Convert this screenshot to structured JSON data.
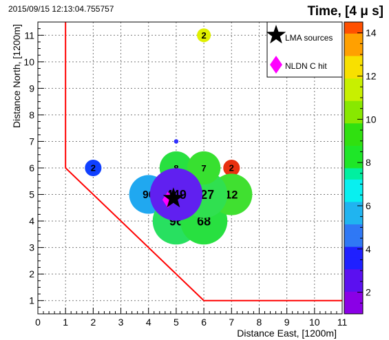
{
  "timestamp": "2015/09/15 12:13:04.755757",
  "chart_data": {
    "type": "scatter",
    "title": "Time, [4 μ s]",
    "xlabel": "Distance East,  [1200m]",
    "ylabel": "Distance North,  [1200m]",
    "xlim": [
      0,
      11
    ],
    "ylim": [
      0.5,
      11.5
    ],
    "x_ticks": [
      "0",
      "1",
      "2",
      "3",
      "4",
      "5",
      "6",
      "7",
      "8",
      "9",
      "10",
      "11"
    ],
    "y_ticks": [
      "1",
      "2",
      "3",
      "4",
      "5",
      "6",
      "7",
      "8",
      "9",
      "10",
      "11"
    ],
    "grid": true,
    "colorbar": {
      "range": [
        1,
        14.5
      ],
      "ticks": [
        "2",
        "4",
        "6",
        "8",
        "10",
        "12",
        "14"
      ],
      "tick_values": [
        2,
        4,
        6,
        8,
        10,
        12,
        14
      ]
    },
    "legend": {
      "placement": "top-right",
      "entries": [
        {
          "label": "LMA sources",
          "marker": "star",
          "color": "#000000"
        },
        {
          "label": "NLDN   C hit",
          "marker": "diamond",
          "color": "#ff00ff"
        }
      ]
    },
    "boundary": {
      "color": "#ff0000",
      "points": [
        [
          1,
          11.5
        ],
        [
          1,
          6
        ],
        [
          6,
          1
        ],
        [
          11,
          1
        ]
      ]
    },
    "bubbles": [
      {
        "x": 6,
        "y": 11,
        "label": "2",
        "color": "#e0f000",
        "size": 0.25
      },
      {
        "x": 5,
        "y": 7,
        "label": "",
        "color": "#3030ff",
        "size": 0.08
      },
      {
        "x": 2,
        "y": 6,
        "label": "2",
        "color": "#1040ff",
        "size": 0.3
      },
      {
        "x": 7,
        "y": 6,
        "label": "2",
        "color": "#e83010",
        "size": 0.3
      },
      {
        "x": 4,
        "y": 5,
        "label": "96",
        "color": "#20a8f0",
        "size": 0.7
      },
      {
        "x": 5,
        "y": 4,
        "label": "96",
        "color": "#28e060",
        "size": 0.85
      },
      {
        "x": 6,
        "y": 4,
        "label": "68",
        "color": "#28e040",
        "size": 0.85
      },
      {
        "x": 7,
        "y": 5,
        "label": "12",
        "color": "#40e030",
        "size": 0.75
      },
      {
        "x": 6,
        "y": 5,
        "label": "227",
        "color": "#30e050",
        "size": 0.85
      },
      {
        "x": 5,
        "y": 6,
        "label": "8",
        "color": "#28e040",
        "size": 0.6
      },
      {
        "x": 6,
        "y": 6,
        "label": "7",
        "color": "#38e030",
        "size": 0.6
      },
      {
        "x": 5,
        "y": 5,
        "label": "449",
        "color": "#6020f0",
        "size": 0.95
      }
    ],
    "lma_sources": [
      {
        "x": 4.9,
        "y": 4.85
      }
    ],
    "nldn_hits": [
      {
        "x": 4.7,
        "y": 4.8
      }
    ]
  }
}
